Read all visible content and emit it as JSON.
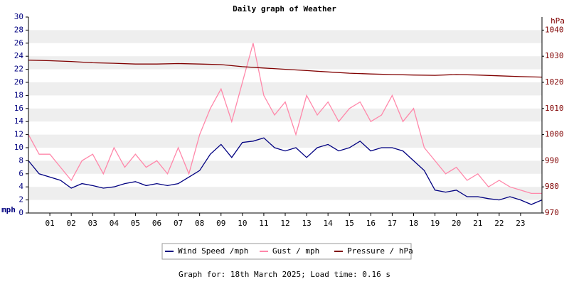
{
  "chart_data": {
    "type": "line",
    "title": "Daily graph of Weather",
    "y_label": "mph",
    "y2_label": "hPa",
    "footer": "Graph for: 18th March 2025; Load time: 0.16 s",
    "xlim": [
      0,
      24
    ],
    "xticks": [
      {
        "value": 1,
        "label": "01"
      },
      {
        "value": 2,
        "label": "02"
      },
      {
        "value": 3,
        "label": "03"
      },
      {
        "value": 4,
        "label": "04"
      },
      {
        "value": 5,
        "label": "05"
      },
      {
        "value": 6,
        "label": "06"
      },
      {
        "value": 7,
        "label": "07"
      },
      {
        "value": 8,
        "label": "08"
      },
      {
        "value": 9,
        "label": "09"
      },
      {
        "value": 10,
        "label": "10"
      },
      {
        "value": 11,
        "label": "11"
      },
      {
        "value": 12,
        "label": "12"
      },
      {
        "value": 13,
        "label": "13"
      },
      {
        "value": 14,
        "label": "14"
      },
      {
        "value": 15,
        "label": "15"
      },
      {
        "value": 16,
        "label": "16"
      },
      {
        "value": 17,
        "label": "17"
      },
      {
        "value": 18,
        "label": "18"
      },
      {
        "value": 19,
        "label": "19"
      },
      {
        "value": 20,
        "label": "20"
      },
      {
        "value": 21,
        "label": "21"
      },
      {
        "value": 22,
        "label": "22"
      },
      {
        "value": 23,
        "label": "23"
      }
    ],
    "ylim": [
      0,
      30
    ],
    "yticks": [
      0,
      2,
      4,
      6,
      8,
      10,
      12,
      14,
      16,
      18,
      20,
      22,
      24,
      26,
      28,
      30
    ],
    "y2lim": [
      970,
      1045
    ],
    "y2ticks": [
      970,
      980,
      990,
      1000,
      1010,
      1020,
      1030,
      1040
    ],
    "grid": true,
    "legend": "bottom",
    "series": [
      {
        "name": "Gust / mph",
        "color": "#ff88aa",
        "x": [
          0,
          0.5,
          1,
          1.5,
          2,
          2.5,
          3,
          3.5,
          4,
          4.5,
          5,
          5.5,
          6,
          6.5,
          7,
          7.5,
          8,
          8.5,
          9,
          9.5,
          10,
          10.5,
          11,
          11.5,
          12,
          12.5,
          13,
          13.5,
          14,
          14.5,
          15,
          15.5,
          16,
          16.5,
          17,
          17.5,
          18,
          18.5,
          19,
          19.5,
          20,
          20.5,
          21,
          21.5,
          22,
          22.5,
          23,
          23.5,
          24
        ],
        "values": [
          12,
          9,
          9,
          7,
          5,
          8,
          9,
          6,
          10,
          7,
          9,
          7,
          8,
          6,
          10,
          6,
          12,
          16,
          19,
          14,
          20,
          26,
          18,
          15,
          17,
          12,
          18,
          15,
          17,
          14,
          16,
          17,
          14,
          15,
          18,
          14,
          16,
          10,
          8,
          6,
          7,
          5,
          6,
          4,
          5,
          4,
          3.5,
          3,
          3
        ]
      },
      {
        "name": "Wind Speed /mph",
        "color": "#000080",
        "x": [
          0,
          0.5,
          1,
          1.5,
          2,
          2.5,
          3,
          3.5,
          4,
          4.5,
          5,
          5.5,
          6,
          6.5,
          7,
          7.5,
          8,
          8.5,
          9,
          9.5,
          10,
          10.5,
          11,
          11.5,
          12,
          12.5,
          13,
          13.5,
          14,
          14.5,
          15,
          15.5,
          16,
          16.5,
          17,
          17.5,
          18,
          18.5,
          19,
          19.5,
          20,
          20.5,
          21,
          21.5,
          22,
          22.5,
          23,
          23.5,
          24
        ],
        "values": [
          8,
          6,
          5.5,
          5,
          3.8,
          4.5,
          4.2,
          3.8,
          4,
          4.5,
          4.8,
          4.2,
          4.5,
          4.2,
          4.5,
          5.5,
          6.5,
          9,
          10.5,
          8.5,
          10.8,
          11,
          11.5,
          10,
          9.5,
          10,
          8.5,
          10,
          10.5,
          9.5,
          10,
          11,
          9.5,
          10,
          10,
          9.5,
          8,
          6.5,
          3.5,
          3.2,
          3.5,
          2.5,
          2.5,
          2.2,
          2,
          2.5,
          2,
          1.3,
          2
        ]
      },
      {
        "name": "Pressure / hPa",
        "color": "#800000",
        "axis": "y2",
        "x": [
          0,
          1,
          2,
          3,
          4,
          5,
          6,
          7,
          8,
          9,
          10,
          11,
          12,
          13,
          14,
          15,
          16,
          17,
          18,
          19,
          20,
          21,
          22,
          23,
          24
        ],
        "values": [
          1028.5,
          1028.3,
          1028,
          1027.5,
          1027.3,
          1027,
          1027,
          1027.2,
          1027,
          1026.8,
          1026,
          1025.5,
          1025,
          1024.5,
          1024,
          1023.5,
          1023.2,
          1023,
          1022.8,
          1022.7,
          1023,
          1022.8,
          1022.5,
          1022.2,
          1022
        ]
      }
    ]
  }
}
